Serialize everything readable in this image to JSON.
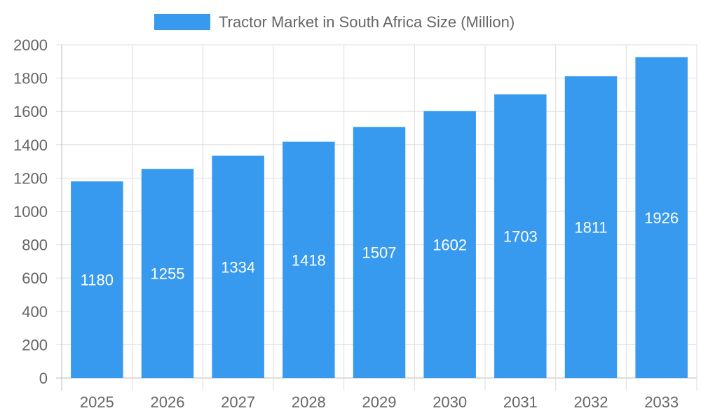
{
  "chart_data": {
    "type": "bar",
    "categories": [
      "2025",
      "2026",
      "2027",
      "2028",
      "2029",
      "2030",
      "2031",
      "2032",
      "2033"
    ],
    "series": [
      {
        "name": "Tractor Market in South Africa Size (Million)",
        "values": [
          1180,
          1255,
          1334,
          1418,
          1507,
          1602,
          1703,
          1811,
          1926
        ]
      }
    ],
    "yticks": [
      "0",
      "200",
      "400",
      "600",
      "800",
      "1000",
      "1200",
      "1400",
      "1600",
      "1800",
      "2000"
    ],
    "ylim": [
      0,
      2000
    ],
    "grid": true,
    "legend": "top",
    "bar_color": "#379AEF",
    "data_labels": true
  }
}
